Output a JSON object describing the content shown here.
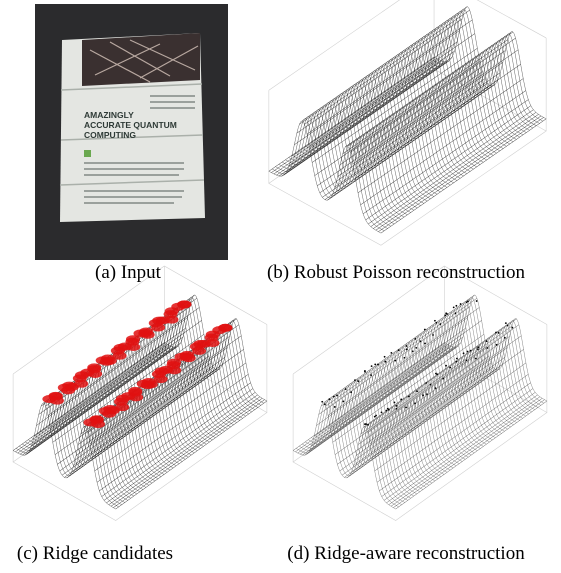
{
  "panels": [
    {
      "caption": "(a) Input",
      "photo_text": [
        "AMAZINGLY",
        "ACCURATE QUANTUM",
        "COMPUTING"
      ]
    },
    {
      "caption": "(b) Robust Poisson reconstruction"
    },
    {
      "caption": "(c) Ridge candidates"
    },
    {
      "caption": "(d) Ridge-aware reconstruction"
    }
  ]
}
